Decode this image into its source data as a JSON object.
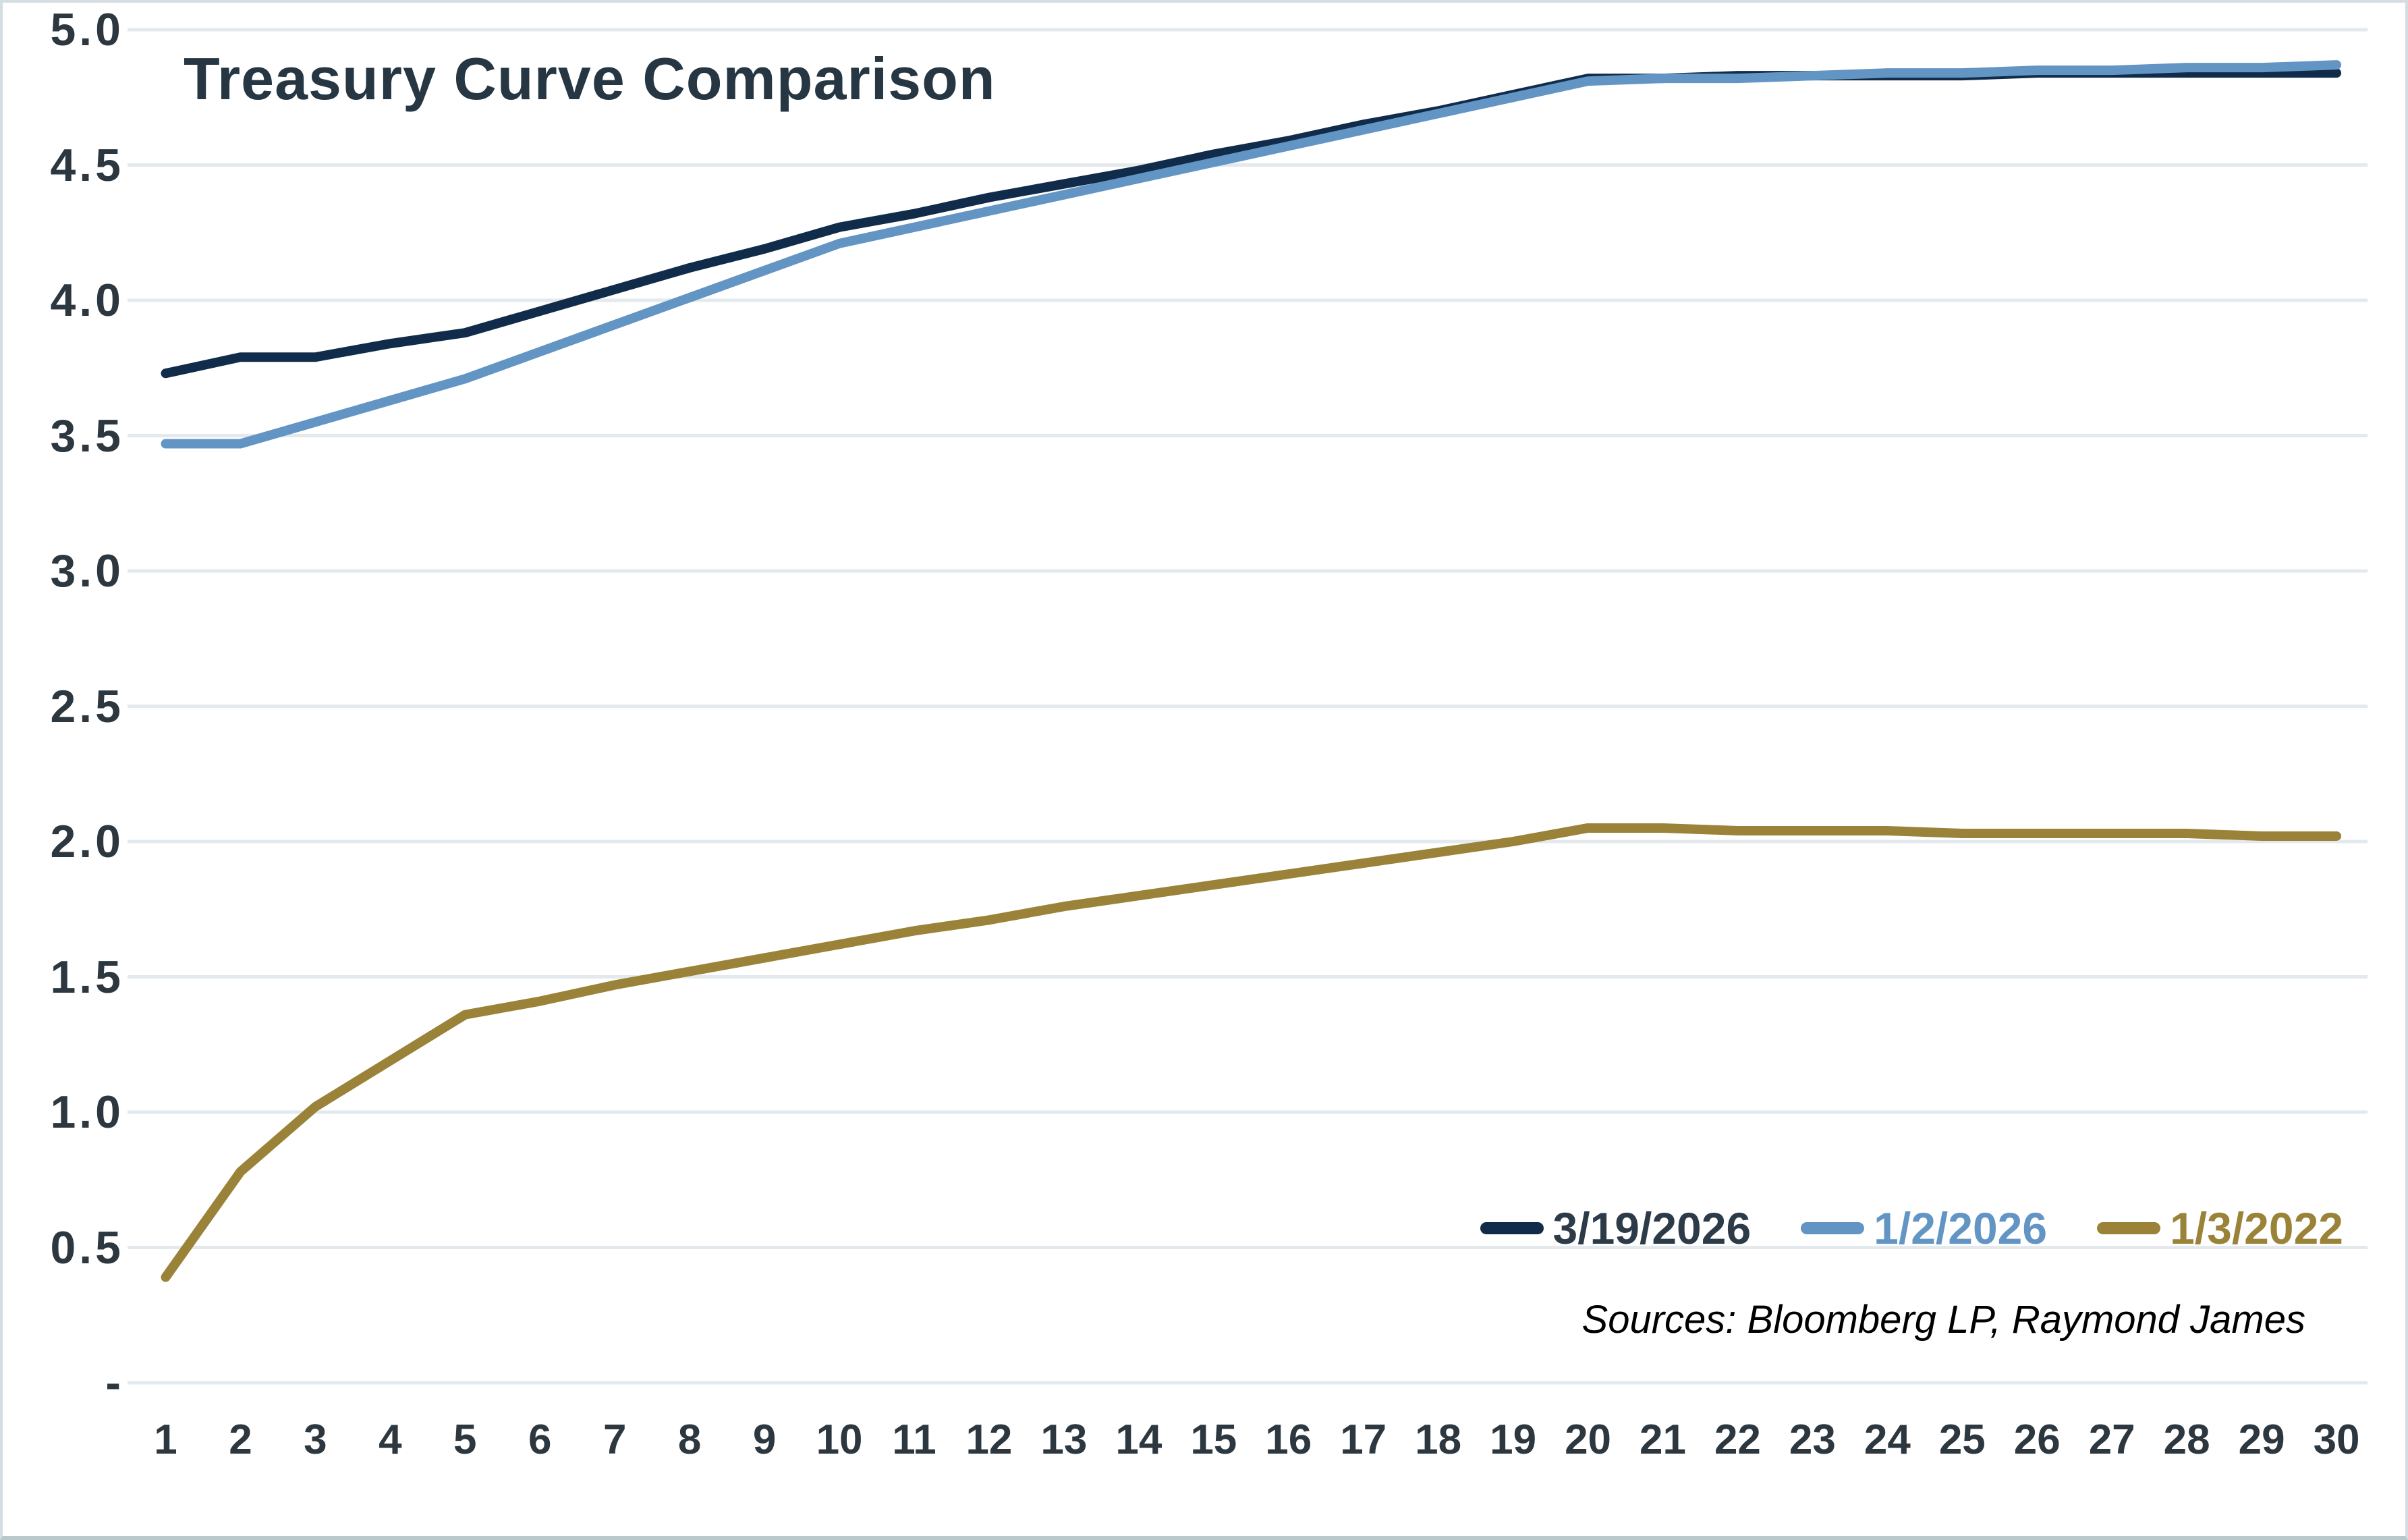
{
  "chart_data": {
    "type": "line",
    "title": "Treasury Curve Comparison",
    "sources_note": "Sources: Bloomberg LP, Raymond James",
    "grid": true,
    "legend_position": "bottom-right",
    "x_label": "",
    "y_label": "",
    "x_ticks": [
      "1",
      "2",
      "3",
      "4",
      "5",
      "6",
      "7",
      "8",
      "9",
      "10",
      "11",
      "12",
      "13",
      "14",
      "15",
      "16",
      "17",
      "18",
      "19",
      "20",
      "21",
      "22",
      "23",
      "24",
      "25",
      "26",
      "27",
      "28",
      "29",
      "30"
    ],
    "y_ticks": [
      {
        "label": "5.0",
        "value": 5.0
      },
      {
        "label": "4.5",
        "value": 4.5
      },
      {
        "label": "4.0",
        "value": 4.0
      },
      {
        "label": "3.5",
        "value": 3.5
      },
      {
        "label": "3.0",
        "value": 3.0
      },
      {
        "label": "2.5",
        "value": 2.5
      },
      {
        "label": "2.0",
        "value": 2.0
      },
      {
        "label": "1.5",
        "value": 1.5
      },
      {
        "label": "1.0",
        "value": 1.0
      },
      {
        "label": "0.5",
        "value": 0.5
      },
      {
        "label": "-",
        "value": 0.0
      }
    ],
    "y_min": 0,
    "y_max": 5,
    "x": [
      1,
      2,
      3,
      4,
      5,
      6,
      7,
      8,
      9,
      10,
      11,
      12,
      13,
      14,
      15,
      16,
      17,
      18,
      19,
      20,
      21,
      22,
      23,
      24,
      25,
      26,
      27,
      28,
      29,
      30
    ],
    "series": [
      {
        "name": "3/19/2026",
        "color": "#102c4a",
        "values": [
          3.73,
          3.79,
          3.79,
          3.84,
          3.88,
          3.96,
          4.04,
          4.12,
          4.19,
          4.27,
          4.32,
          4.38,
          4.43,
          4.48,
          4.54,
          4.59,
          4.65,
          4.7,
          4.76,
          4.82,
          4.82,
          4.83,
          4.83,
          4.83,
          4.83,
          4.84,
          4.84,
          4.84,
          4.84,
          4.84
        ]
      },
      {
        "name": "1/2/2026",
        "color": "#6395c4",
        "values": [
          3.47,
          3.47,
          3.55,
          3.63,
          3.71,
          3.81,
          3.91,
          4.01,
          4.11,
          4.21,
          4.27,
          4.33,
          4.39,
          4.45,
          4.51,
          4.57,
          4.63,
          4.69,
          4.75,
          4.81,
          4.82,
          4.82,
          4.83,
          4.84,
          4.84,
          4.85,
          4.85,
          4.86,
          4.86,
          4.87
        ]
      },
      {
        "name": "1/3/2022",
        "color": "#9a8339",
        "values": [
          0.39,
          0.78,
          1.02,
          1.19,
          1.36,
          1.41,
          1.47,
          1.52,
          1.57,
          1.62,
          1.67,
          1.71,
          1.76,
          1.8,
          1.84,
          1.88,
          1.92,
          1.96,
          2.0,
          2.05,
          2.05,
          2.04,
          2.04,
          2.04,
          2.03,
          2.03,
          2.03,
          2.03,
          2.02,
          2.02
        ]
      }
    ],
    "gridline_color": "#e3e9ed",
    "line_width": 14
  }
}
